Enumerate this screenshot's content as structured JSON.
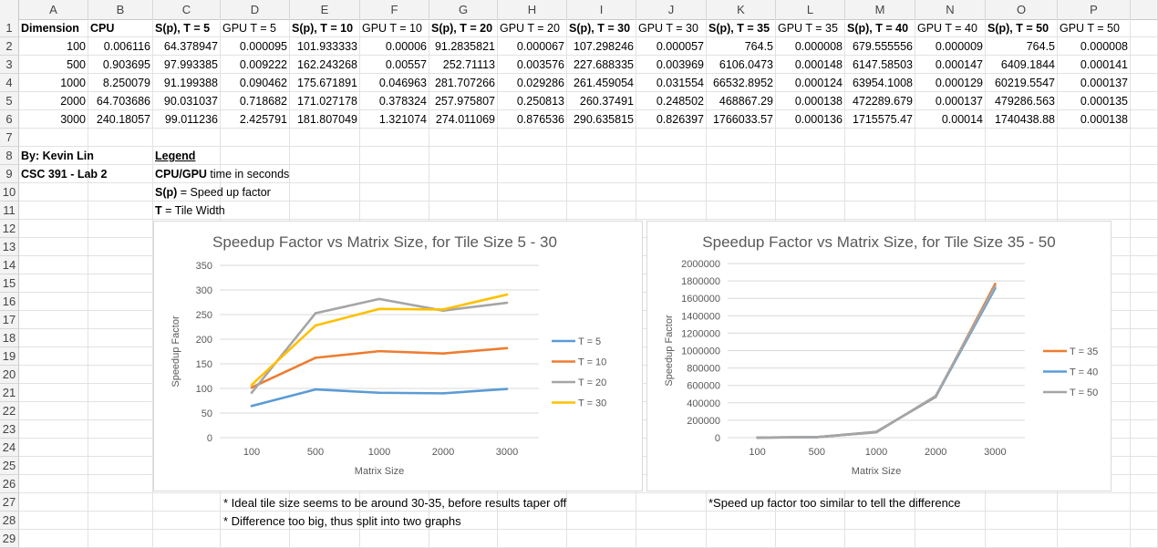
{
  "columns": [
    "A",
    "B",
    "C",
    "D",
    "E",
    "F",
    "G",
    "H",
    "I",
    "J",
    "K",
    "L",
    "M",
    "N",
    "O",
    "P"
  ],
  "rows": [
    "1",
    "2",
    "3",
    "4",
    "5",
    "6",
    "7",
    "8",
    "9",
    "10",
    "11",
    "12",
    "13",
    "14",
    "15",
    "16",
    "17",
    "18",
    "19",
    "20",
    "21",
    "22",
    "23",
    "24",
    "25",
    "26",
    "27",
    "28",
    "29"
  ],
  "table": {
    "headers": [
      "Dimension",
      "CPU",
      "S(p), T = 5",
      "GPU T = 5",
      "S(p), T = 10",
      "GPU T = 10",
      "S(p), T = 20",
      "GPU T = 20",
      "S(p), T = 30",
      "GPU T = 30",
      "S(p), T = 35",
      "GPU T = 35",
      "S(p), T = 40",
      "GPU T = 40",
      "S(p), T = 50",
      "GPU T = 50"
    ],
    "rows": [
      [
        "100",
        "0.006116",
        "64.378947",
        "0.000095",
        "101.933333",
        "0.00006",
        "91.2835821",
        "0.000067",
        "107.298246",
        "0.000057",
        "764.5",
        "0.000008",
        "679.555556",
        "0.000009",
        "764.5",
        "0.000008"
      ],
      [
        "500",
        "0.903695",
        "97.993385",
        "0.009222",
        "162.243268",
        "0.00557",
        "252.71113",
        "0.003576",
        "227.688335",
        "0.003969",
        "6106.0473",
        "0.000148",
        "6147.58503",
        "0.000147",
        "6409.1844",
        "0.000141"
      ],
      [
        "1000",
        "8.250079",
        "91.199388",
        "0.090462",
        "175.671891",
        "0.046963",
        "281.707266",
        "0.029286",
        "261.459054",
        "0.031554",
        "66532.8952",
        "0.000124",
        "63954.1008",
        "0.000129",
        "60219.5547",
        "0.000137"
      ],
      [
        "2000",
        "64.703686",
        "90.031037",
        "0.718682",
        "171.027178",
        "0.378324",
        "257.975807",
        "0.250813",
        "260.37491",
        "0.248502",
        "468867.29",
        "0.000138",
        "472289.679",
        "0.000137",
        "479286.563",
        "0.000135"
      ],
      [
        "3000",
        "240.18057",
        "99.011236",
        "2.425791",
        "181.807049",
        "1.321074",
        "274.011069",
        "0.876536",
        "290.635815",
        "0.826397",
        "1766033.57",
        "0.000136",
        "1715575.47",
        "0.00014",
        "1740438.88",
        "0.000138"
      ]
    ]
  },
  "author": "By: Kevin Lin",
  "course": "CSC 391 - Lab 2",
  "legend_block": {
    "title": "Legend",
    "line1_bold": "CPU/GPU",
    "line1_rest": " time in seconds",
    "line2_bold": "S(p)",
    "line2_rest": " = Speed up factor",
    "line3_bold": "T",
    "line3_rest": " = Tile Width"
  },
  "notes": {
    "left1": "* Ideal tile size seems to be around 30-35, before results taper off",
    "left2": "* Difference too big, thus split into two graphs",
    "right1": "*Speed up factor too similar to tell the difference"
  },
  "chart_data": [
    {
      "type": "line",
      "title": "Speedup Factor vs Matrix Size, for Tile Size 5 - 30",
      "xlabel": "Matrix Size",
      "ylabel": "Speedup Factor",
      "categories": [
        "100",
        "500",
        "1000",
        "2000",
        "3000"
      ],
      "ylim": [
        0,
        350
      ],
      "yticks": [
        "0",
        "50",
        "100",
        "150",
        "200",
        "250",
        "300",
        "350"
      ],
      "grid": true,
      "legend_position": "right",
      "series": [
        {
          "name": "T = 5",
          "color": "#5b9bd5",
          "values": [
            64.378947,
            97.993385,
            91.199388,
            90.031037,
            99.011236
          ]
        },
        {
          "name": "T = 10",
          "color": "#ed7d31",
          "values": [
            101.933333,
            162.243268,
            175.671891,
            171.027178,
            181.807049
          ]
        },
        {
          "name": "T = 20",
          "color": "#a5a5a5",
          "values": [
            91.2835821,
            252.71113,
            281.707266,
            257.975807,
            274.011069
          ]
        },
        {
          "name": "T = 30",
          "color": "#ffc000",
          "values": [
            107.298246,
            227.688335,
            261.459054,
            260.37491,
            290.635815
          ]
        }
      ]
    },
    {
      "type": "line",
      "title": "Speedup Factor vs Matrix Size, for Tile Size 35 - 50",
      "xlabel": "Matrix Size",
      "ylabel": "Speedup Factor",
      "categories": [
        "100",
        "500",
        "1000",
        "2000",
        "3000"
      ],
      "ylim": [
        0,
        2000000
      ],
      "yticks": [
        "0",
        "200000",
        "400000",
        "600000",
        "800000",
        "1000000",
        "1200000",
        "1400000",
        "1600000",
        "1800000",
        "2000000"
      ],
      "grid": true,
      "legend_position": "right",
      "series": [
        {
          "name": "T = 35",
          "color": "#ed7d31",
          "values": [
            764.5,
            6106.0473,
            66532.8952,
            468867.29,
            1766033.57
          ]
        },
        {
          "name": "T = 40",
          "color": "#5b9bd5",
          "values": [
            679.555556,
            6147.58503,
            63954.1008,
            472289.679,
            1715575.47
          ]
        },
        {
          "name": "T = 50",
          "color": "#a5a5a5",
          "values": [
            764.5,
            6409.1844,
            60219.5547,
            479286.563,
            1740438.88
          ]
        }
      ]
    }
  ]
}
